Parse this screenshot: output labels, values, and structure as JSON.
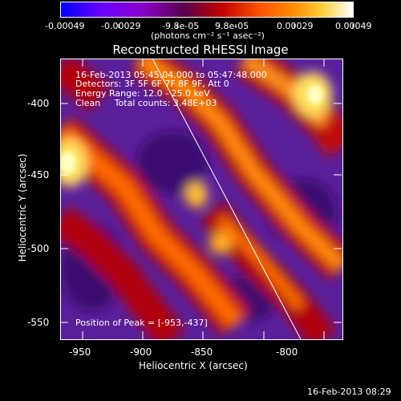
{
  "colorbar": {
    "ticks": [
      "-0.00049",
      "-0.00029",
      "-9.8e-05",
      "9.8e-05",
      "0.00029",
      "0.00049"
    ],
    "units": "(photons cm⁻² s⁻¹ asec⁻²)",
    "colors": [
      "#0000ff",
      "#7a00ff",
      "#b000c0",
      "#c00000",
      "#ff8000",
      "#ffff80",
      "#ffffff"
    ]
  },
  "title": "Reconstructed RHESSI Image",
  "overlay": {
    "line1": "16-Feb-2013 05:45:04.000 to 05:47:48.000",
    "line2": "Detectors: 3F 5F 6F 7F 8F 9F, Att 0",
    "line3": "Energy Range: 12.0 - 25.0 keV",
    "line4": "Clean     Total counts: 3.48E+03",
    "peak": "Position of Peak = [-953,-437]"
  },
  "axes": {
    "xlabel": "Heliocentric X (arcsec)",
    "ylabel": "Heliocentric Y (arcsec)",
    "xticks": [
      "-950",
      "-900",
      "-850",
      "-800"
    ],
    "yticks": [
      "-400",
      "-450",
      "-500",
      "-550"
    ]
  },
  "timestamp": "16-Feb-2013 08:29"
}
